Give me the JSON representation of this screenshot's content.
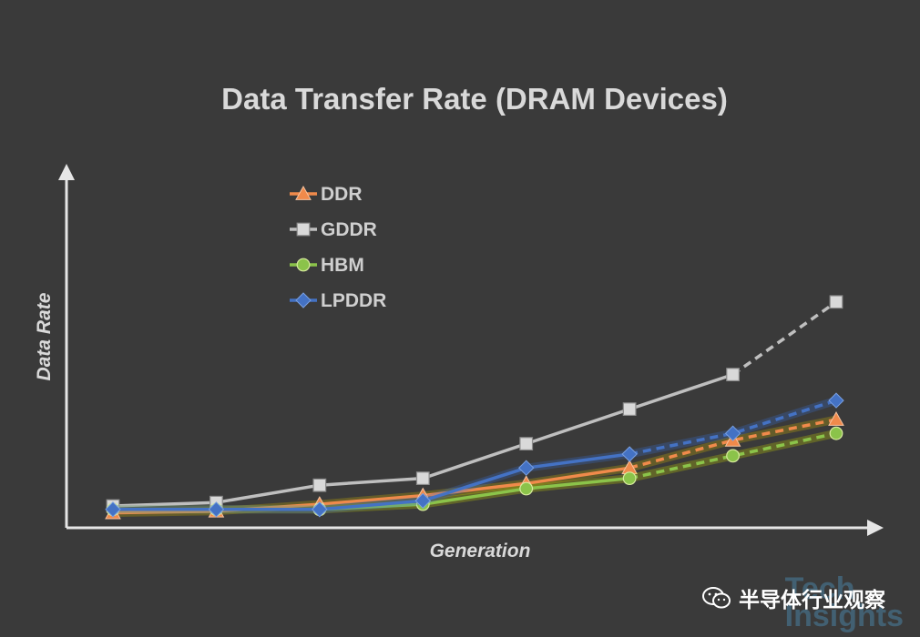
{
  "chart_data": {
    "type": "line",
    "title": "Data Transfer Rate (DRAM Devices)",
    "xlabel": "Generation",
    "ylabel": "Data Rate",
    "x": [
      1,
      2,
      3,
      4,
      5,
      6,
      7,
      8
    ],
    "ylim": [
      0,
      100
    ],
    "grid": false,
    "legend_position": "top-left",
    "series": [
      {
        "name": "DDR",
        "color": "#f08a4b",
        "marker": "triangle",
        "values": [
          3,
          3.5,
          5.5,
          8,
          11.5,
          16,
          24,
          30
        ],
        "dashed_from_index": 5
      },
      {
        "name": "GDDR",
        "color": "#bfbfbf",
        "marker": "square",
        "values": [
          5,
          6,
          11,
          13,
          23,
          33,
          43,
          64
        ],
        "dashed_from_index": 6
      },
      {
        "name": "HBM",
        "color": "#8bc34a",
        "marker": "circle",
        "values": [
          4,
          4,
          4,
          5.5,
          10,
          13,
          19.5,
          26
        ],
        "dashed_from_index": 5
      },
      {
        "name": "LPDDR",
        "color": "#4472c4",
        "marker": "diamond",
        "values": [
          4,
          4,
          4,
          6.5,
          16,
          20,
          26,
          35.5
        ],
        "dashed_from_index": 5
      }
    ]
  },
  "brand": {
    "account_name": "半导体行业观察",
    "watermark_top": "Tech",
    "watermark_bottom": "Insights"
  }
}
